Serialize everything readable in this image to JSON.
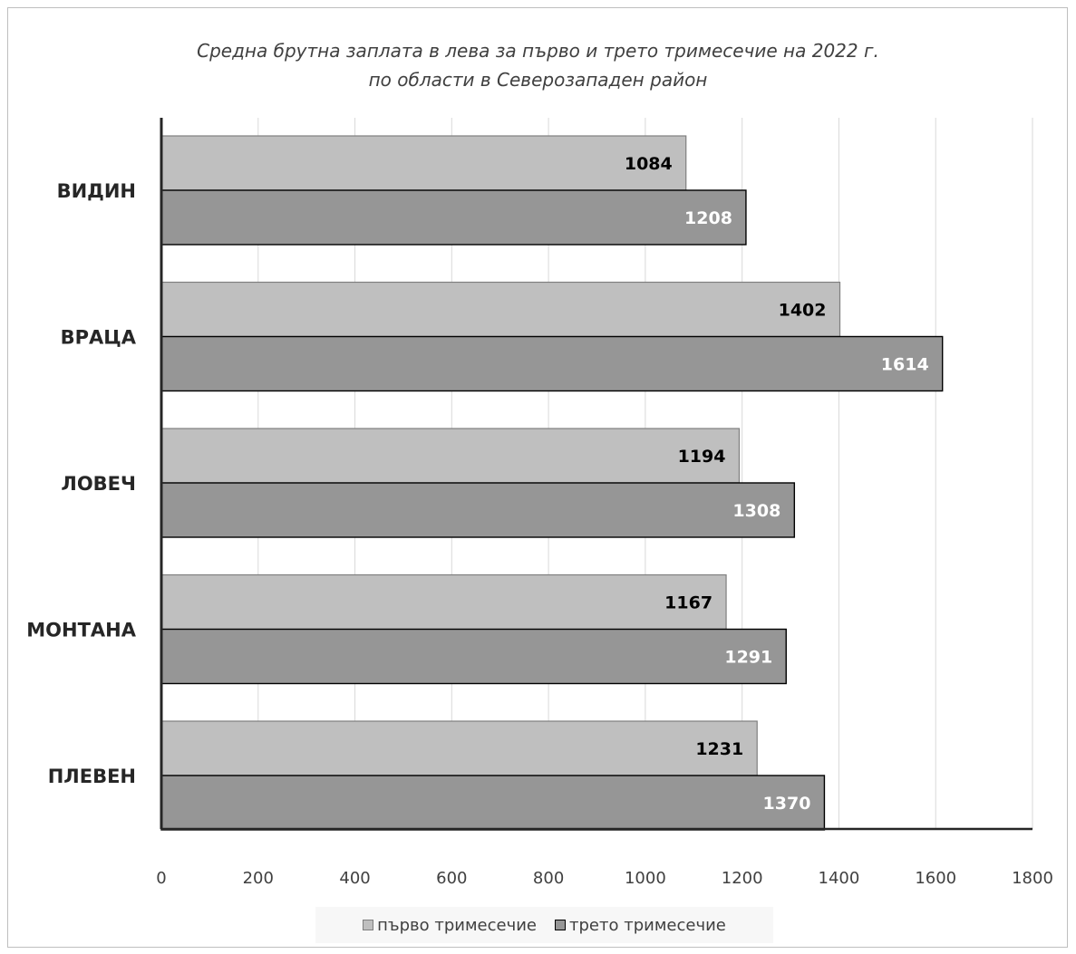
{
  "chart_data": {
    "type": "bar",
    "orientation": "horizontal",
    "title_lines": [
      "Средна брутна заплата в лева за първо и трето тримесечие на 2022 г.",
      "по области в Северозападен район"
    ],
    "categories": [
      "ВИДИН",
      "ВРАЦА",
      "ЛОВЕЧ",
      "МОНТАНА",
      "ПЛЕВЕН"
    ],
    "series": [
      {
        "name": "първо тримесечие",
        "values": [
          1084,
          1402,
          1194,
          1167,
          1231
        ],
        "color": "#bfbfbf",
        "label_color": "#000000"
      },
      {
        "name": "трето тримесечие",
        "values": [
          1208,
          1614,
          1308,
          1291,
          1370
        ],
        "color": "#969696",
        "label_color": "#ffffff"
      }
    ],
    "xlim": [
      0,
      1800
    ],
    "xticks": [
      0,
      200,
      400,
      600,
      800,
      1000,
      1200,
      1400,
      1600,
      1800
    ],
    "grid": "vertical",
    "legend_position": "bottom",
    "data_labels": true
  }
}
